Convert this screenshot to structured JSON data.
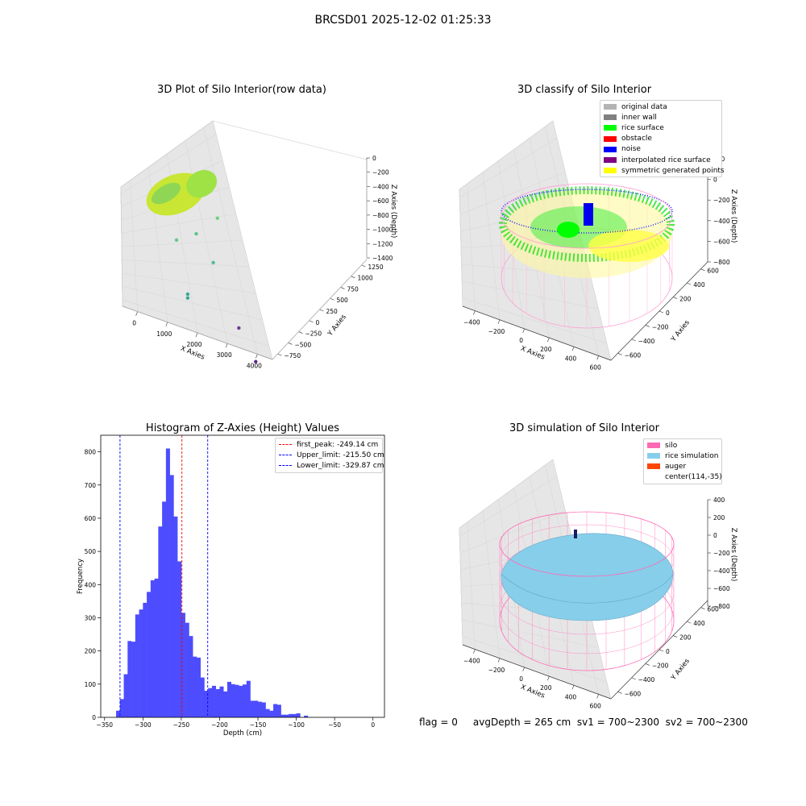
{
  "figure": {
    "suptitle": "BRCSD01 2025-12-02 01:25:33",
    "footer": "flag = 0     avgDepth = 265 cm  sv1 = 700~2300  sv2 = 700~2300"
  },
  "panels": {
    "raw": {
      "title": "3D Plot of Silo Interior(row data)",
      "xlabel": "X Axies",
      "ylabel": "Y Axies",
      "zlabel": "Z Axies (Depth)",
      "xticks": [
        "0",
        "1000",
        "2000",
        "3000",
        "4000"
      ],
      "yticks": [
        "−750",
        "−500",
        "−250",
        "0",
        "250",
        "500",
        "750",
        "1000",
        "1250"
      ],
      "zticks": [
        "0",
        "−200",
        "−400",
        "−600",
        "−800",
        "−1000",
        "−1200",
        "−1400"
      ]
    },
    "classify": {
      "title": "3D classify of Silo Interior",
      "xlabel": "X Axies",
      "ylabel": "Y Axies",
      "zlabel": "Z Axies (Depth)",
      "xticks": [
        "−400",
        "−200",
        "0",
        "200",
        "400",
        "600"
      ],
      "yticks": [
        "−600",
        "−400",
        "−200",
        "0",
        "200",
        "400",
        "600"
      ],
      "zticks": [
        "200",
        "0",
        "−200",
        "−400",
        "−600",
        "−800"
      ],
      "legend": [
        {
          "label": "original data",
          "color": "#b4b4b4"
        },
        {
          "label": "inner wall",
          "color": "#808080"
        },
        {
          "label": "rice surface",
          "color": "#00ff00"
        },
        {
          "label": "obstacle",
          "color": "#ff0000"
        },
        {
          "label": "noise",
          "color": "#0000ff"
        },
        {
          "label": "interpolated rice surface",
          "color": "#800080"
        },
        {
          "label": "symmetric generated points",
          "color": "#ffff00"
        }
      ]
    },
    "histogram": {
      "title": "Histogram of Z-Axies (Height) Values",
      "xlabel": "Depth (cm)",
      "ylabel": "Frequency",
      "xticks": [
        "−350",
        "−300",
        "−250",
        "−200",
        "−150",
        "−100",
        "−50",
        "0"
      ],
      "yticks": [
        "0",
        "100",
        "200",
        "300",
        "400",
        "500",
        "600",
        "700",
        "800"
      ],
      "legend": [
        {
          "label": "first_peak: -249.14 cm",
          "color": "#ff0000"
        },
        {
          "label": "Upper_limit: -215.50 cm",
          "color": "#0000ff"
        },
        {
          "label": "Lower_limit: -329.87 cm",
          "color": "#0000ff"
        }
      ]
    },
    "simulation": {
      "title": "3D simulation of Silo Interior",
      "xlabel": "X Axies",
      "ylabel": "Y Axies",
      "zlabel": "Z Axies (Depth)",
      "xticks": [
        "−400",
        "−200",
        "0",
        "200",
        "400",
        "600"
      ],
      "yticks": [
        "−600",
        "−400",
        "−200",
        "0",
        "200",
        "400",
        "600"
      ],
      "zticks": [
        "400",
        "200",
        "0",
        "−200",
        "−400",
        "−600",
        "−800"
      ],
      "legend": [
        {
          "label": "silo",
          "color": "#ff69b4"
        },
        {
          "label": "rice simulation",
          "color": "#87ceeb"
        },
        {
          "label": "auger",
          "color": "#ff4500"
        },
        {
          "label": "center(114,-35)",
          "color": ""
        }
      ]
    }
  },
  "chart_data": [
    {
      "type": "scatter",
      "title": "3D Plot of Silo Interior(row data)",
      "xlabel": "X Axies",
      "ylabel": "Y Axies",
      "zlabel": "Z Axies (Depth)",
      "xlim": [
        -600,
        4000
      ],
      "ylim": [
        -750,
        1300
      ],
      "zlim": [
        -1450,
        100
      ],
      "series": [
        {
          "points": [
            {
              "x": 1700,
              "y": 0,
              "z": -300
            },
            {
              "x": 2500,
              "y": 250,
              "z": -350
            },
            {
              "x": 1000,
              "y": 100,
              "z": -500
            },
            {
              "x": 2300,
              "y": 0,
              "z": -650
            },
            {
              "x": 1400,
              "y": -200,
              "z": -900
            },
            {
              "x": 1400,
              "y": -200,
              "z": -950
            },
            {
              "x": 3100,
              "y": -300,
              "z": -1100
            },
            {
              "x": 3600,
              "y": -450,
              "z": -1300
            }
          ]
        }
      ]
    },
    {
      "type": "scatter",
      "title": "3D classify of Silo Interior",
      "xlabel": "X Axies",
      "ylabel": "Y Axies",
      "zlabel": "Z Axies (Depth)",
      "xlim": [
        -500,
        700
      ],
      "ylim": [
        -650,
        650
      ],
      "zlim": [
        -900,
        300
      ],
      "legend_position": "top-right",
      "series": [
        {
          "name": "original data"
        },
        {
          "name": "inner wall"
        },
        {
          "name": "rice surface"
        },
        {
          "name": "obstacle"
        },
        {
          "name": "noise"
        },
        {
          "name": "interpolated rice surface"
        },
        {
          "name": "symmetric generated points"
        }
      ]
    },
    {
      "type": "bar",
      "title": "Histogram of Z-Axies (Height) Values",
      "xlabel": "Depth (cm)",
      "ylabel": "Frequency",
      "xlim": [
        -355,
        15
      ],
      "ylim": [
        0,
        850
      ],
      "bin_width": 5,
      "bin_starts": [
        -335,
        -330,
        -325,
        -320,
        -315,
        -310,
        -305,
        -300,
        -295,
        -290,
        -285,
        -280,
        -275,
        -270,
        -265,
        -260,
        -255,
        -250,
        -245,
        -240,
        -235,
        -230,
        -225,
        -220,
        -215,
        -210,
        -205,
        -200,
        -195,
        -190,
        -185,
        -180,
        -175,
        -170,
        -165,
        -160,
        -155,
        -150,
        -145,
        -140,
        -135,
        -130,
        -125,
        -120,
        -115,
        -110,
        -105,
        -100,
        -95,
        -90,
        -85,
        -80,
        -75,
        -70,
        -65,
        -60,
        -55,
        -50,
        -45,
        -40,
        -35,
        -30,
        -25,
        -20,
        -15,
        -10,
        -5,
        0
      ],
      "values": [
        20,
        55,
        130,
        230,
        228,
        310,
        325,
        345,
        378,
        413,
        418,
        575,
        650,
        810,
        730,
        605,
        470,
        315,
        285,
        245,
        183,
        180,
        120,
        80,
        88,
        95,
        85,
        93,
        78,
        107,
        100,
        98,
        95,
        99,
        110,
        50,
        50,
        47,
        45,
        25,
        20,
        40,
        38,
        8,
        8,
        10,
        10,
        12,
        0,
        5,
        0,
        0,
        0,
        0,
        0,
        0,
        0,
        0,
        0,
        0,
        0,
        0,
        0,
        0,
        0,
        0,
        0,
        0
      ],
      "vlines": [
        {
          "x": -249.14,
          "label": "first_peak: -249.14 cm",
          "color": "#ff0000"
        },
        {
          "x": -215.5,
          "label": "Upper_limit: -215.50 cm",
          "color": "#0000ff"
        },
        {
          "x": -329.87,
          "label": "Lower_limit: -329.87 cm",
          "color": "#0000ff"
        }
      ],
      "bar_color": "#4d4dff",
      "legend_position": "top-right"
    },
    {
      "type": "area",
      "title": "3D simulation of Silo Interior",
      "xlabel": "X Axies",
      "ylabel": "Y Axies",
      "zlabel": "Z Axies (Depth)",
      "xlim": [
        -500,
        700
      ],
      "ylim": [
        -650,
        650
      ],
      "zlim": [
        -900,
        450
      ],
      "legend_position": "top-right",
      "series": [
        {
          "name": "silo"
        },
        {
          "name": "rice simulation"
        },
        {
          "name": "auger"
        },
        {
          "name": "center(114,-35)"
        }
      ]
    }
  ]
}
